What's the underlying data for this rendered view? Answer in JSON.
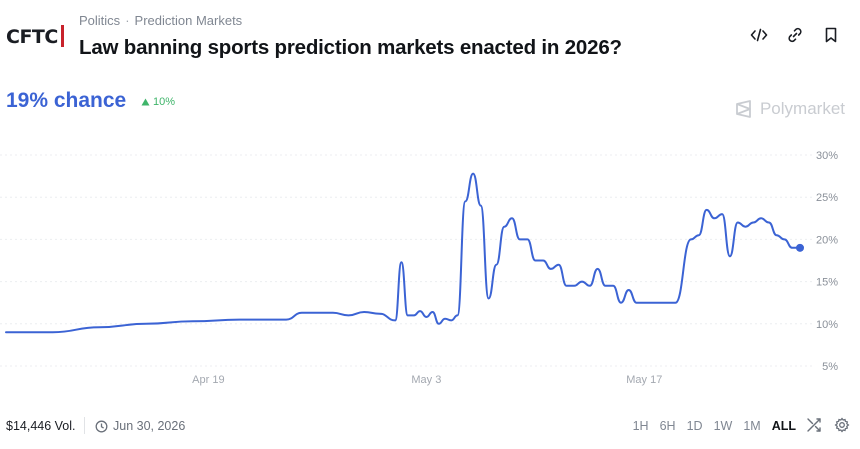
{
  "header": {
    "logo_text": "CFTC",
    "breadcrumbs": [
      "Politics",
      "Prediction Markets"
    ],
    "title": "Law banning sports prediction markets enacted in 2026?",
    "icons": [
      "embed-icon",
      "link-icon",
      "bookmark-icon"
    ]
  },
  "summary": {
    "chance": "19% chance",
    "delta": "10%",
    "delta_color": "#3fb56a",
    "chance_color": "#3b63d4"
  },
  "brand": {
    "name": "Polymarket"
  },
  "chart_data": {
    "type": "line",
    "series": [
      {
        "values_x": [
          "Apr 6",
          "Apr 9",
          "Apr 12",
          "Apr 15",
          "Apr 18",
          "Apr 21",
          "Apr 24",
          "Apr 25",
          "Apr 27",
          "Apr 28",
          "Apr 29",
          "Apr 30",
          "May 1",
          "May 1.4",
          "May 1.8",
          "May 2.2",
          "May 2.6",
          "May 3",
          "May 3.4",
          "May 3.8",
          "May 4.2",
          "May 4.6",
          "May 5",
          "May 5.5",
          "May 6",
          "May 6.5",
          "May 7",
          "May 7.5",
          "May 8",
          "May 8.5",
          "May 9",
          "May 9.5",
          "May 10",
          "May 10.5",
          "May 11",
          "May 11.5",
          "May 12",
          "May 12.5",
          "May 13",
          "May 13.5",
          "May 14",
          "May 14.5",
          "May 15",
          "May 15.5",
          "May 16",
          "May 16.5",
          "May 17",
          "May 17.5",
          "May 18",
          "May 19",
          "May 20",
          "May 20.5",
          "May 21",
          "May 21.5",
          "May 22",
          "May 22.5",
          "May 23",
          "May 23.5",
          "May 24",
          "May 24.5",
          "May 25",
          "May 25.5",
          "May 26",
          "May 26.5",
          "May 27"
        ],
        "values": [
          9.0,
          9.0,
          9.6,
          10.0,
          10.3,
          10.5,
          10.5,
          11.3,
          11.3,
          11.0,
          11.4,
          11.2,
          10.4,
          17.3,
          11.0,
          11.0,
          11.5,
          10.8,
          11.4,
          10.0,
          10.6,
          10.4,
          11.0,
          24.5,
          27.8,
          24.0,
          13.0,
          17.0,
          21.5,
          22.5,
          20.0,
          20.0,
          17.5,
          17.5,
          16.5,
          17.0,
          14.5,
          14.5,
          15.0,
          14.5,
          16.5,
          14.5,
          14.5,
          12.5,
          14.0,
          12.5,
          12.5,
          12.5,
          12.5,
          12.5,
          20.0,
          20.5,
          23.5,
          22.5,
          23.0,
          18.0,
          22.0,
          21.5,
          22.0,
          22.5,
          22.0,
          20.5,
          20.0,
          19.0,
          19.0
        ]
      }
    ],
    "x_ticks": [
      "Apr 19",
      "May 3",
      "May 17"
    ],
    "y_ticks": [
      "30%",
      "25%",
      "20%",
      "15%",
      "10%",
      "5%"
    ],
    "ylim": [
      5,
      30
    ],
    "grid": true,
    "line_color": "#3b63d4"
  },
  "footer": {
    "volume": "$14,446 Vol.",
    "end_date": "Jun 30, 2026",
    "ranges": [
      "1H",
      "6H",
      "1D",
      "1W",
      "1M",
      "ALL"
    ],
    "active_range": "ALL",
    "tools": [
      "shuffle-icon",
      "settings-icon"
    ]
  }
}
